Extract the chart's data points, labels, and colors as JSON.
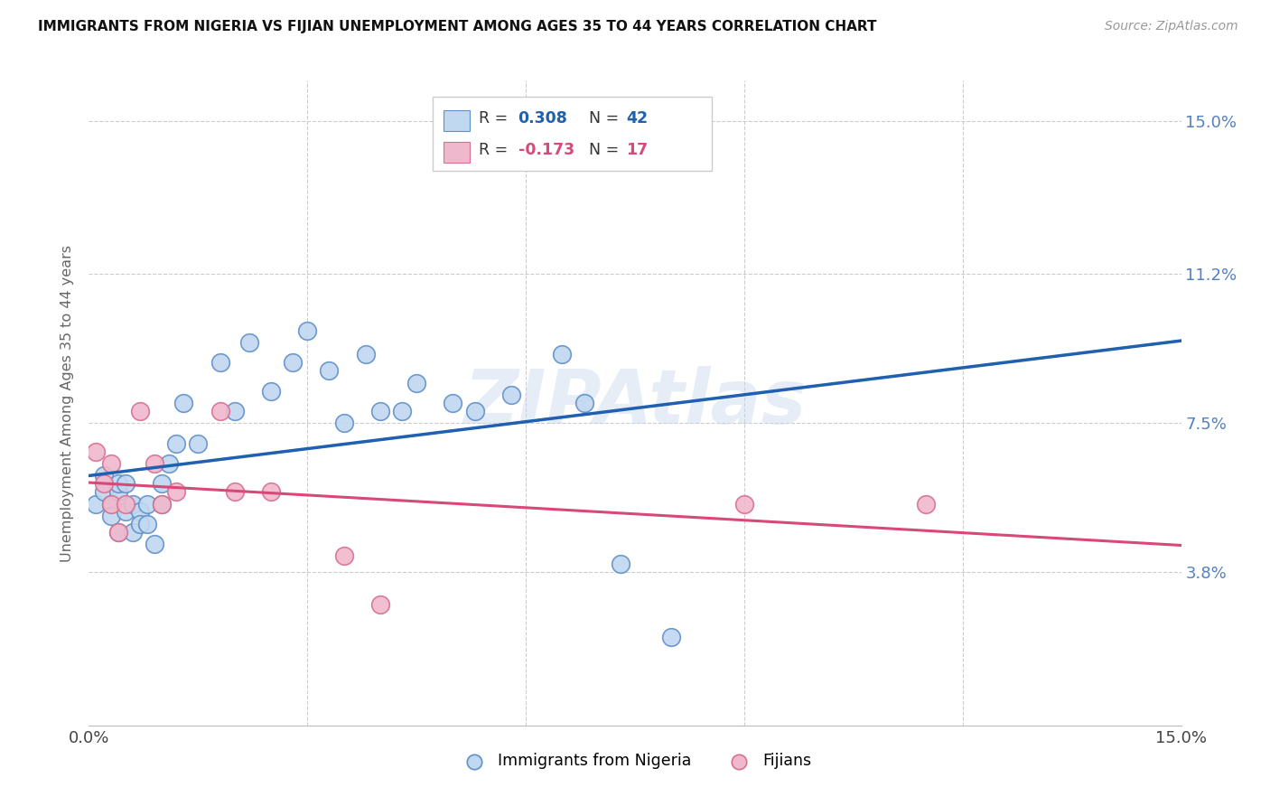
{
  "title": "IMMIGRANTS FROM NIGERIA VS FIJIAN UNEMPLOYMENT AMONG AGES 35 TO 44 YEARS CORRELATION CHART",
  "source": "Source: ZipAtlas.com",
  "ylabel": "Unemployment Among Ages 35 to 44 years",
  "xlim": [
    0.0,
    0.15
  ],
  "ylim": [
    0.0,
    0.16
  ],
  "ytick_labels": [
    "3.8%",
    "7.5%",
    "11.2%",
    "15.0%"
  ],
  "ytick_positions": [
    0.038,
    0.075,
    0.112,
    0.15
  ],
  "xtick_positions": [
    0.0,
    0.03,
    0.06,
    0.09,
    0.12,
    0.15
  ],
  "xtick_labels": [
    "0.0%",
    "",
    "",
    "",
    "",
    "15.0%"
  ],
  "legend1_label": "Immigrants from Nigeria",
  "legend2_label": "Fijians",
  "r1": "0.308",
  "n1": "42",
  "r2": "-0.173",
  "n2": "17",
  "blue_fill": "#c0d8f0",
  "blue_edge": "#6090c8",
  "pink_fill": "#f0b8cc",
  "pink_edge": "#d87090",
  "blue_line": "#2060b0",
  "pink_line": "#d84878",
  "watermark": "ZIPAtlas",
  "nigeria_x": [
    0.001,
    0.002,
    0.002,
    0.003,
    0.003,
    0.004,
    0.004,
    0.004,
    0.005,
    0.005,
    0.006,
    0.006,
    0.007,
    0.007,
    0.008,
    0.008,
    0.009,
    0.01,
    0.01,
    0.011,
    0.012,
    0.013,
    0.015,
    0.018,
    0.02,
    0.022,
    0.025,
    0.028,
    0.03,
    0.033,
    0.035,
    0.038,
    0.04,
    0.043,
    0.045,
    0.05,
    0.053,
    0.058,
    0.065,
    0.068,
    0.073,
    0.08
  ],
  "nigeria_y": [
    0.055,
    0.058,
    0.062,
    0.055,
    0.052,
    0.058,
    0.06,
    0.048,
    0.053,
    0.06,
    0.048,
    0.055,
    0.053,
    0.05,
    0.05,
    0.055,
    0.045,
    0.06,
    0.055,
    0.065,
    0.07,
    0.08,
    0.07,
    0.09,
    0.078,
    0.095,
    0.083,
    0.09,
    0.098,
    0.088,
    0.075,
    0.092,
    0.078,
    0.078,
    0.085,
    0.08,
    0.078,
    0.082,
    0.092,
    0.08,
    0.04,
    0.022
  ],
  "fijian_x": [
    0.001,
    0.002,
    0.003,
    0.003,
    0.004,
    0.005,
    0.007,
    0.009,
    0.01,
    0.012,
    0.018,
    0.02,
    0.025,
    0.035,
    0.04,
    0.09,
    0.115
  ],
  "fijian_y": [
    0.068,
    0.06,
    0.055,
    0.065,
    0.048,
    0.055,
    0.078,
    0.065,
    0.055,
    0.058,
    0.078,
    0.058,
    0.058,
    0.042,
    0.03,
    0.055,
    0.055
  ]
}
